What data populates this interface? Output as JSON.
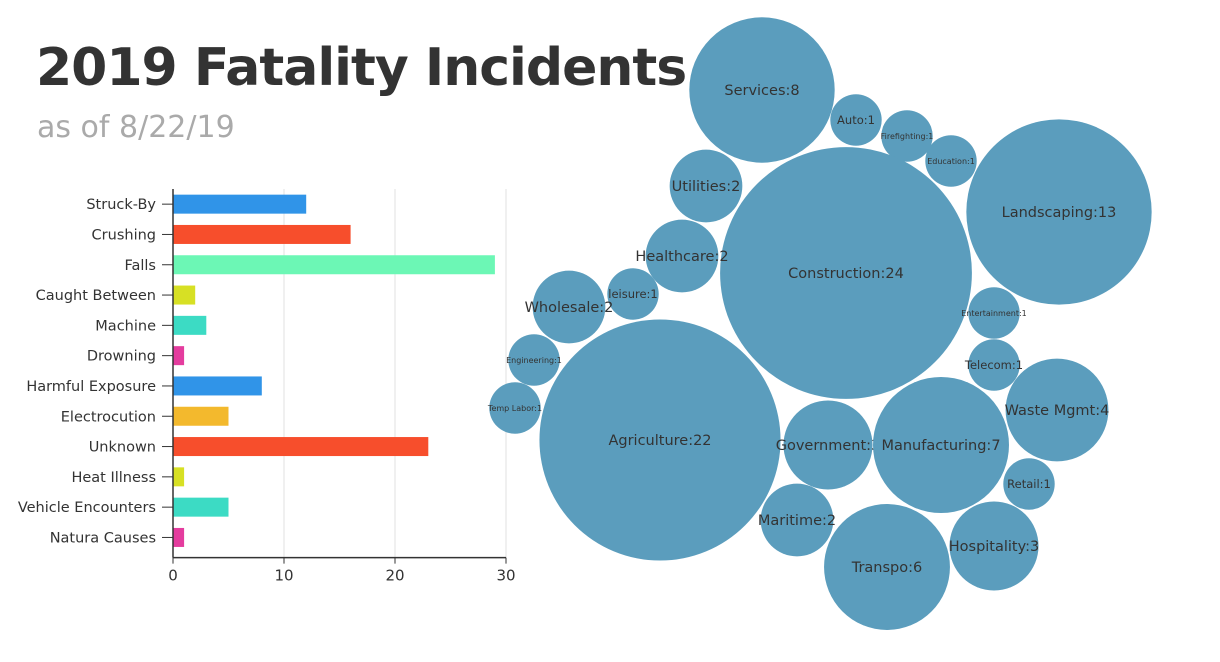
{
  "header": {
    "title": "2019 Fatality Incidents",
    "subtitle": "as of 8/22/19"
  },
  "chart_data": [
    {
      "type": "bar",
      "orientation": "horizontal",
      "categories": [
        "Struck-By",
        "Crushing",
        "Falls",
        "Caught Between",
        "Machine",
        "Drowning",
        "Harmful Exposure",
        "Electrocution",
        "Unknown",
        "Heat Illness",
        "Vehicle Encounters",
        "Natura Causes"
      ],
      "values": [
        12,
        16,
        29,
        2,
        3,
        1,
        8,
        5,
        23,
        1,
        5,
        1
      ],
      "colors": [
        "#3094e8",
        "#f74e2c",
        "#6cf7b5",
        "#d7e024",
        "#3cdbc4",
        "#e43c9e",
        "#3094e8",
        "#f3b92d",
        "#f74e2c",
        "#d7e024",
        "#3cdbc4",
        "#e43c9e"
      ],
      "xlim": [
        0,
        30
      ],
      "xticks": [
        "0",
        "10",
        "20",
        "30"
      ],
      "grid": true
    },
    {
      "type": "bubble",
      "color": "#5b9dbd",
      "items": [
        {
          "name": "Services",
          "value": 8,
          "label": "Services:8"
        },
        {
          "name": "Auto",
          "value": 1,
          "label": "Auto:1"
        },
        {
          "name": "Firefighting",
          "value": 1,
          "label": "Firefighting:1"
        },
        {
          "name": "Education",
          "value": 1,
          "label": "Education:1"
        },
        {
          "name": "Utilities",
          "value": 2,
          "label": "Utilities:2"
        },
        {
          "name": "Landscaping",
          "value": 13,
          "label": "Landscaping:13"
        },
        {
          "name": "Construction",
          "value": 24,
          "label": "Construction:24"
        },
        {
          "name": "Healthcare",
          "value": 2,
          "label": "Healthcare:2"
        },
        {
          "name": "leisure",
          "value": 1,
          "label": "leisure:1"
        },
        {
          "name": "Wholesale",
          "value": 2,
          "label": "Wholesale:2"
        },
        {
          "name": "Entertainment",
          "value": 1,
          "label": "Entertainment:1"
        },
        {
          "name": "Engineering",
          "value": 1,
          "label": "Engineering:1"
        },
        {
          "name": "Telecom",
          "value": 1,
          "label": "Telecom:1"
        },
        {
          "name": "Temp Labor",
          "value": 1,
          "label": "Temp Labor:1"
        },
        {
          "name": "Agriculture",
          "value": 22,
          "label": "Agriculture:22"
        },
        {
          "name": "Waste Mgmt",
          "value": 4,
          "label": "Waste Mgmt:4"
        },
        {
          "name": "Government",
          "value": 3,
          "label": "Government:3"
        },
        {
          "name": "Manufacturing",
          "value": 7,
          "label": "Manufacturing:7"
        },
        {
          "name": "Retail",
          "value": 1,
          "label": "Retail:1"
        },
        {
          "name": "Maritime",
          "value": 2,
          "label": "Maritime:2"
        },
        {
          "name": "Transpo",
          "value": 6,
          "label": "Transpo:6"
        },
        {
          "name": "Hospitality",
          "value": 3,
          "label": "Hospitality:3"
        }
      ]
    }
  ]
}
